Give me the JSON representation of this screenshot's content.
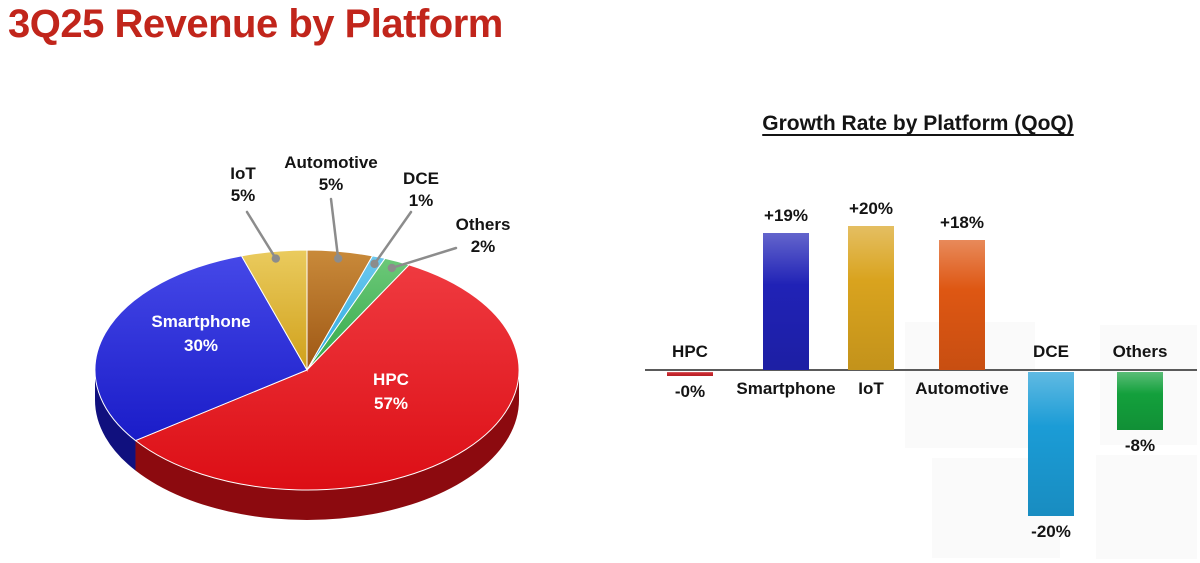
{
  "page": {
    "title": "3Q25 Revenue by Platform",
    "title_color": "#C1251B"
  },
  "chart_data": [
    {
      "type": "pie",
      "title": "3Q25 Revenue by Platform",
      "units": "%",
      "start_angle_deg": 0,
      "clockwise_from_top": true,
      "style": "3d",
      "segments": [
        {
          "label": "Automotive",
          "value": 5,
          "display": "5%",
          "color": "#9E5714",
          "light": "#C98A3A",
          "dark": "#6E3C0E",
          "callout": true
        },
        {
          "label": "DCE",
          "value": 1,
          "display": "1%",
          "color": "#2AA9E0",
          "light": "#6CC8EE",
          "dark": "#1E7FA8",
          "callout": true
        },
        {
          "label": "Others",
          "value": 2,
          "display": "2%",
          "color": "#33A94A",
          "light": "#6CC878",
          "dark": "#1F7A33",
          "callout": true
        },
        {
          "label": "HPC",
          "value": 57,
          "display": "57%",
          "color": "#DC0E15",
          "light": "#EF3A40",
          "dark": "#8C0A0F",
          "callout": false
        },
        {
          "label": "Smartphone",
          "value": 30,
          "display": "30%",
          "color": "#1A1CC8",
          "light": "#4548E8",
          "dark": "#10107E",
          "callout": false
        },
        {
          "label": "IoT",
          "value": 5,
          "display": "5%",
          "color": "#D0A01A",
          "light": "#EACB5E",
          "dark": "#8E6C10",
          "callout": true
        }
      ]
    },
    {
      "type": "bar",
      "title": "Growth Rate by Platform (QoQ)",
      "categories": [
        "HPC",
        "Smartphone",
        "IoT",
        "Automotive",
        "DCE",
        "Others"
      ],
      "values": [
        0,
        19,
        20,
        18,
        -20,
        -8
      ],
      "value_labels": [
        "-0%",
        "+19%",
        "+20%",
        "+18%",
        "-20%",
        "-8%"
      ],
      "colors": [
        "#C9252C",
        "#2022B6",
        "#D9A31E",
        "#DE5713",
        "#1B9CD6",
        "#13A03C"
      ],
      "ylim": [
        -22,
        22
      ],
      "axis": "zero-line",
      "legend": "none"
    }
  ]
}
